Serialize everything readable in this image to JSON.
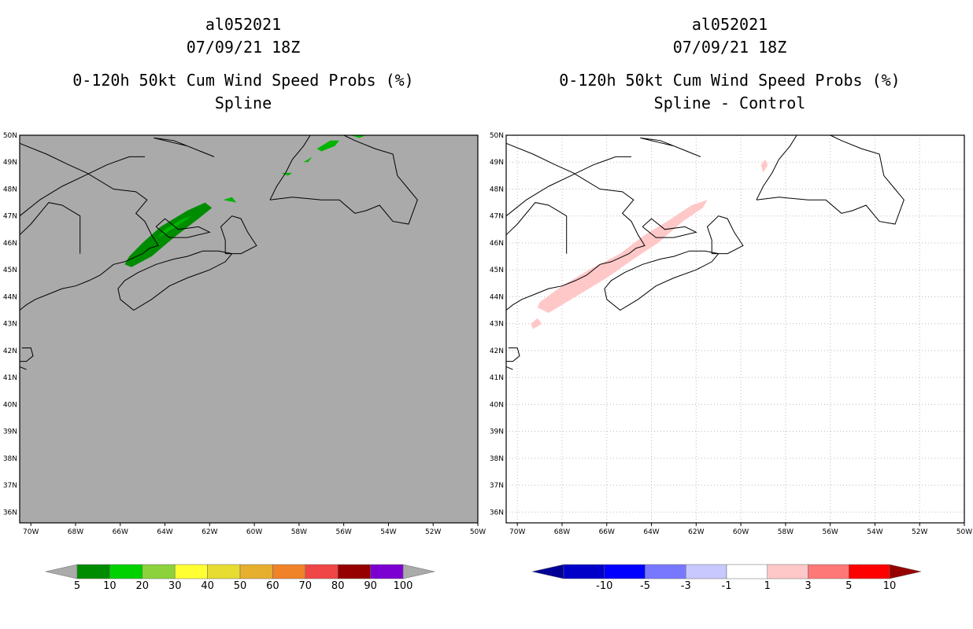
{
  "panels": [
    {
      "id": "left",
      "storm_id": "al052021",
      "datetime": "07/09/21 18Z",
      "product": "0-120h 50kt Cum Wind Speed Probs (%)",
      "subtitle": "Spline",
      "background": "#aaaaaa",
      "gridlines": false,
      "colorbar": {
        "labels": [
          "5",
          "10",
          "20",
          "30",
          "40",
          "50",
          "60",
          "70",
          "80",
          "90",
          "100"
        ],
        "colors": [
          "#008c00",
          "#00d200",
          "#8cd23c",
          "#ffff32",
          "#e6dc32",
          "#e6af2d",
          "#f08228",
          "#f04646",
          "#960000",
          "#7d00d2"
        ],
        "end_color": "#aaaaaa"
      }
    },
    {
      "id": "right",
      "storm_id": "al052021",
      "datetime": "07/09/21 18Z",
      "product": "0-120h 50kt Cum Wind Speed Probs (%)",
      "subtitle": "Spline - Control",
      "background": "#ffffff",
      "gridlines": true,
      "colorbar": {
        "labels": [
          "-10",
          "-5",
          "-3",
          "-1",
          "1",
          "3",
          "5",
          "10"
        ],
        "colors": [
          "#0000c8",
          "#0000ff",
          "#7878ff",
          "#c8c8ff",
          "#ffffff",
          "#ffc8c8",
          "#ff7878",
          "#ff0000"
        ],
        "low_color": "#000096",
        "high_color": "#960000"
      }
    }
  ],
  "axes": {
    "lon_labels": [
      "70W",
      "68W",
      "66W",
      "64W",
      "62W",
      "60W",
      "58W",
      "56W",
      "54W",
      "52W",
      "50W"
    ],
    "lat_labels": [
      "50N",
      "49N",
      "48N",
      "47N",
      "46N",
      "45N",
      "44N",
      "43N",
      "42N",
      "41N",
      "40N",
      "39N",
      "38N",
      "37N",
      "36N"
    ]
  }
}
